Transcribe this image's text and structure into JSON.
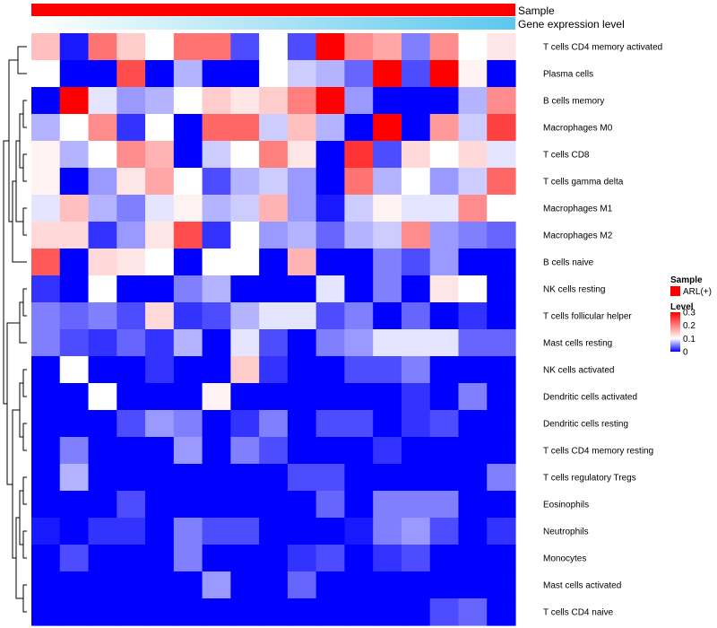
{
  "chart_data": {
    "type": "heatmap",
    "annotations": [
      {
        "name": "Sample",
        "color": "#ff0000"
      },
      {
        "name": "Gene expression level",
        "gradient": [
          "#ffffff",
          "#5bc8ec"
        ]
      }
    ],
    "rows": [
      "T cells CD4 memory activated",
      "Plasma cells",
      "B cells memory",
      "Macrophages M0",
      "T cells CD8",
      "T cells gamma delta",
      "Macrophages M1",
      "Macrophages M2",
      "B cells naive",
      "NK cells resting",
      "T cells follicular helper",
      "Mast cells resting",
      "NK cells activated",
      "Dendritic cells activated",
      "Dendritic cells resting",
      "T cells CD4 memory resting",
      "T cells regulatory  Tregs",
      "Eosinophils",
      "Neutrophils",
      "Monocytes",
      "Mast cells activated",
      "T cells CD4 naive"
    ],
    "values": [
      [
        0.15,
        0.01,
        0.21,
        0.14,
        0.1,
        0.21,
        0.21,
        0.03,
        0.1,
        0.03,
        0.3,
        0.19,
        0.17,
        0.05,
        0.19,
        0.1,
        0.12
      ],
      [
        0.1,
        0.0,
        0.0,
        0.24,
        0.0,
        0.07,
        0.0,
        0.0,
        0.1,
        0.08,
        0.07,
        0.04,
        0.3,
        0.03,
        0.3,
        0.11,
        0.0
      ],
      [
        0.0,
        0.3,
        0.09,
        0.06,
        0.07,
        0.1,
        0.14,
        0.12,
        0.14,
        0.2,
        0.3,
        0.06,
        0.0,
        0.0,
        0.0,
        0.07,
        0.19
      ],
      [
        0.07,
        0.1,
        0.19,
        0.02,
        0.1,
        0.0,
        0.22,
        0.22,
        0.08,
        0.15,
        0.07,
        0.0,
        0.3,
        0.0,
        0.18,
        0.08,
        0.25
      ],
      [
        0.11,
        0.07,
        0.1,
        0.19,
        0.16,
        0.0,
        0.08,
        0.1,
        0.2,
        0.12,
        0.0,
        0.26,
        0.03,
        0.13,
        0.1,
        0.13,
        0.09
      ],
      [
        0.11,
        0.0,
        0.06,
        0.12,
        0.17,
        0.1,
        0.03,
        0.07,
        0.08,
        0.06,
        0.0,
        0.21,
        0.07,
        0.1,
        0.06,
        0.08,
        0.22
      ],
      [
        0.09,
        0.15,
        0.07,
        0.05,
        0.09,
        0.11,
        0.07,
        0.08,
        0.16,
        0.06,
        0.01,
        0.08,
        0.11,
        0.09,
        0.09,
        0.19,
        0.1
      ],
      [
        0.13,
        0.13,
        0.02,
        0.06,
        0.12,
        0.24,
        0.02,
        0.1,
        0.06,
        0.07,
        0.04,
        0.07,
        0.08,
        0.19,
        0.06,
        0.05,
        0.04
      ],
      [
        0.23,
        0.0,
        0.13,
        0.12,
        0.1,
        0.0,
        0.1,
        0.1,
        0.0,
        0.16,
        0.0,
        0.0,
        0.05,
        0.03,
        0.06,
        0.0,
        0.0
      ],
      [
        0.02,
        0.0,
        0.1,
        0.0,
        0.0,
        0.05,
        0.07,
        0.0,
        0.0,
        0.0,
        0.09,
        0.0,
        0.05,
        0.0,
        0.12,
        0.1,
        0.0
      ],
      [
        0.05,
        0.04,
        0.05,
        0.03,
        0.13,
        0.02,
        0.03,
        0.07,
        0.09,
        0.09,
        0.03,
        0.05,
        0.0,
        0.04,
        0.0,
        0.02,
        0.0
      ],
      [
        0.05,
        0.03,
        0.02,
        0.04,
        0.02,
        0.07,
        0.0,
        0.09,
        0.03,
        0.0,
        0.05,
        0.06,
        0.09,
        0.09,
        0.09,
        0.04,
        0.04
      ],
      [
        0.0,
        0.1,
        0.0,
        0.0,
        0.02,
        0.0,
        0.0,
        0.14,
        0.02,
        0.0,
        0.0,
        0.03,
        0.03,
        0.05,
        0.0,
        0.0,
        0.0
      ],
      [
        0.0,
        0.0,
        0.1,
        0.0,
        0.0,
        0.0,
        0.11,
        0.0,
        0.0,
        0.0,
        0.0,
        0.0,
        0.0,
        0.02,
        0.0,
        0.05,
        0.0
      ],
      [
        0.0,
        0.0,
        0.0,
        0.03,
        0.06,
        0.05,
        0.0,
        0.02,
        0.05,
        0.0,
        0.03,
        0.03,
        0.0,
        0.02,
        0.03,
        0.0,
        0.0
      ],
      [
        0.0,
        0.05,
        0.0,
        0.0,
        0.0,
        0.06,
        0.0,
        0.05,
        0.03,
        0.0,
        0.0,
        0.0,
        0.02,
        0.0,
        0.0,
        0.0,
        0.0
      ],
      [
        0.0,
        0.07,
        0.0,
        0.0,
        0.0,
        0.0,
        0.0,
        0.0,
        0.0,
        0.03,
        0.03,
        0.0,
        0.0,
        0.0,
        0.0,
        0.0,
        0.05
      ],
      [
        0.0,
        0.0,
        0.0,
        0.03,
        0.0,
        0.0,
        0.0,
        0.0,
        0.0,
        0.0,
        0.04,
        0.0,
        0.05,
        0.05,
        0.05,
        0.0,
        0.0
      ],
      [
        0.01,
        0.0,
        0.02,
        0.02,
        0.0,
        0.05,
        0.03,
        0.03,
        0.0,
        0.0,
        0.0,
        0.01,
        0.05,
        0.06,
        0.03,
        0.0,
        0.02
      ],
      [
        0.0,
        0.03,
        0.0,
        0.0,
        0.0,
        0.05,
        0.0,
        0.0,
        0.0,
        0.02,
        0.03,
        0.0,
        0.02,
        0.03,
        0.0,
        0.0,
        0.0
      ],
      [
        0.0,
        0.0,
        0.0,
        0.0,
        0.0,
        0.0,
        0.06,
        0.0,
        0.0,
        0.04,
        0.0,
        0.0,
        0.0,
        0.0,
        0.0,
        0.0,
        0.0
      ],
      [
        0.0,
        0.0,
        0.0,
        0.0,
        0.0,
        0.0,
        0.0,
        0.0,
        0.0,
        0.0,
        0.0,
        0.0,
        0.0,
        0.0,
        0.03,
        0.04,
        0.0
      ]
    ],
    "color_scale": {
      "min": 0,
      "mid": 0.1,
      "max": 0.3,
      "low": "#0000ff",
      "midColor": "#ffffff",
      "high": "#ff0000"
    },
    "legends": {
      "sample": {
        "title": "Sample",
        "item": "ARL(+)",
        "color": "#ff0000"
      },
      "level": {
        "title": "Level",
        "ticks": [
          "0.3",
          "0.2",
          "0.1",
          "0"
        ],
        "tick_values": [
          0.3,
          0.2,
          0.1,
          0
        ]
      }
    }
  }
}
